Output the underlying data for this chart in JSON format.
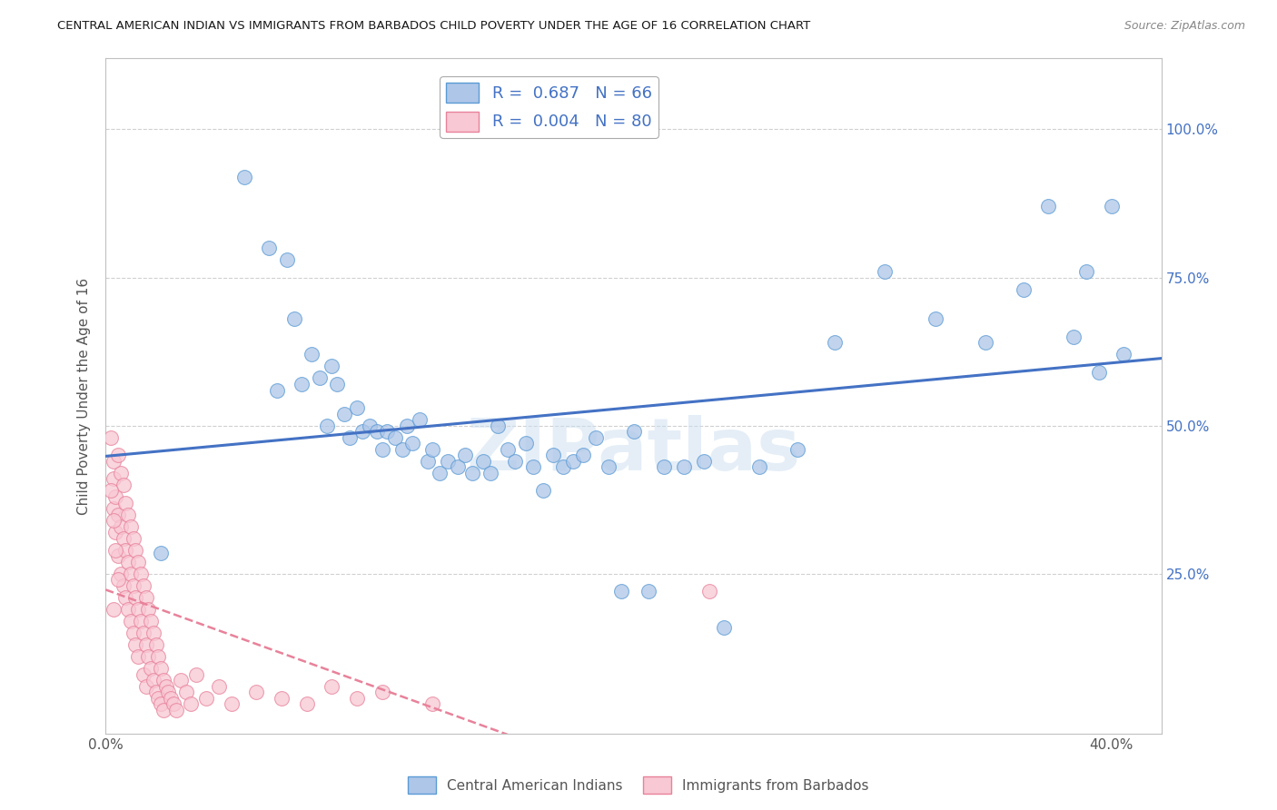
{
  "title": "CENTRAL AMERICAN INDIAN VS IMMIGRANTS FROM BARBADOS CHILD POVERTY UNDER THE AGE OF 16 CORRELATION CHART",
  "source": "Source: ZipAtlas.com",
  "ylabel": "Child Poverty Under the Age of 16",
  "xlim": [
    0.0,
    0.42
  ],
  "ylim": [
    -0.02,
    1.12
  ],
  "ytick_vals": [
    0.25,
    0.5,
    0.75,
    1.0
  ],
  "ytick_labels": [
    "25.0%",
    "50.0%",
    "75.0%",
    "100.0%"
  ],
  "xtick_vals": [
    0.0,
    0.4
  ],
  "xtick_labels": [
    "0.0%",
    "40.0%"
  ],
  "blue_R": 0.687,
  "blue_N": 66,
  "pink_R": 0.004,
  "pink_N": 80,
  "blue_color": "#aec6e8",
  "blue_edge_color": "#5b9bd5",
  "blue_line_color": "#4472c4",
  "pink_color": "#f8c8d4",
  "pink_edge_color": "#e8829a",
  "pink_line_color": "#e8829a",
  "legend_text_color": "#4472c4",
  "watermark": "ZIPatlas",
  "blue_scatter_x": [
    0.022,
    0.055,
    0.065,
    0.068,
    0.072,
    0.075,
    0.078,
    0.082,
    0.085,
    0.088,
    0.09,
    0.092,
    0.095,
    0.097,
    0.1,
    0.102,
    0.105,
    0.108,
    0.11,
    0.112,
    0.115,
    0.118,
    0.12,
    0.122,
    0.125,
    0.128,
    0.13,
    0.133,
    0.136,
    0.14,
    0.143,
    0.146,
    0.15,
    0.153,
    0.156,
    0.16,
    0.163,
    0.167,
    0.17,
    0.174,
    0.178,
    0.182,
    0.186,
    0.19,
    0.195,
    0.2,
    0.205,
    0.21,
    0.216,
    0.222,
    0.23,
    0.238,
    0.246,
    0.26,
    0.275,
    0.29,
    0.31,
    0.33,
    0.35,
    0.365,
    0.375,
    0.385,
    0.39,
    0.395,
    0.4,
    0.405
  ],
  "blue_scatter_y": [
    0.285,
    0.92,
    0.8,
    0.56,
    0.78,
    0.68,
    0.57,
    0.62,
    0.58,
    0.5,
    0.6,
    0.57,
    0.52,
    0.48,
    0.53,
    0.49,
    0.5,
    0.49,
    0.46,
    0.49,
    0.48,
    0.46,
    0.5,
    0.47,
    0.51,
    0.44,
    0.46,
    0.42,
    0.44,
    0.43,
    0.45,
    0.42,
    0.44,
    0.42,
    0.5,
    0.46,
    0.44,
    0.47,
    0.43,
    0.39,
    0.45,
    0.43,
    0.44,
    0.45,
    0.48,
    0.43,
    0.22,
    0.49,
    0.22,
    0.43,
    0.43,
    0.44,
    0.16,
    0.43,
    0.46,
    0.64,
    0.76,
    0.68,
    0.64,
    0.73,
    0.87,
    0.65,
    0.76,
    0.59,
    0.87,
    0.62
  ],
  "pink_scatter_x": [
    0.002,
    0.003,
    0.003,
    0.003,
    0.004,
    0.004,
    0.005,
    0.005,
    0.005,
    0.006,
    0.006,
    0.006,
    0.007,
    0.007,
    0.007,
    0.008,
    0.008,
    0.008,
    0.009,
    0.009,
    0.009,
    0.01,
    0.01,
    0.01,
    0.011,
    0.011,
    0.011,
    0.012,
    0.012,
    0.012,
    0.013,
    0.013,
    0.013,
    0.014,
    0.014,
    0.015,
    0.015,
    0.015,
    0.016,
    0.016,
    0.016,
    0.017,
    0.017,
    0.018,
    0.018,
    0.019,
    0.019,
    0.02,
    0.02,
    0.021,
    0.021,
    0.022,
    0.022,
    0.023,
    0.023,
    0.024,
    0.025,
    0.026,
    0.027,
    0.028,
    0.03,
    0.032,
    0.034,
    0.036,
    0.04,
    0.045,
    0.05,
    0.06,
    0.07,
    0.08,
    0.09,
    0.1,
    0.11,
    0.13,
    0.002,
    0.003,
    0.004,
    0.005,
    0.24,
    0.003
  ],
  "pink_scatter_y": [
    0.48,
    0.41,
    0.36,
    0.44,
    0.38,
    0.32,
    0.45,
    0.35,
    0.28,
    0.42,
    0.33,
    0.25,
    0.4,
    0.31,
    0.23,
    0.37,
    0.29,
    0.21,
    0.35,
    0.27,
    0.19,
    0.33,
    0.25,
    0.17,
    0.31,
    0.23,
    0.15,
    0.29,
    0.21,
    0.13,
    0.27,
    0.19,
    0.11,
    0.25,
    0.17,
    0.23,
    0.15,
    0.08,
    0.21,
    0.13,
    0.06,
    0.19,
    0.11,
    0.17,
    0.09,
    0.15,
    0.07,
    0.13,
    0.05,
    0.11,
    0.04,
    0.09,
    0.03,
    0.07,
    0.02,
    0.06,
    0.05,
    0.04,
    0.03,
    0.02,
    0.07,
    0.05,
    0.03,
    0.08,
    0.04,
    0.06,
    0.03,
    0.05,
    0.04,
    0.03,
    0.06,
    0.04,
    0.05,
    0.03,
    0.39,
    0.34,
    0.29,
    0.24,
    0.22,
    0.19
  ],
  "background_color": "#ffffff",
  "grid_color": "#d0d0d0",
  "border_color": "#c0c0c0"
}
